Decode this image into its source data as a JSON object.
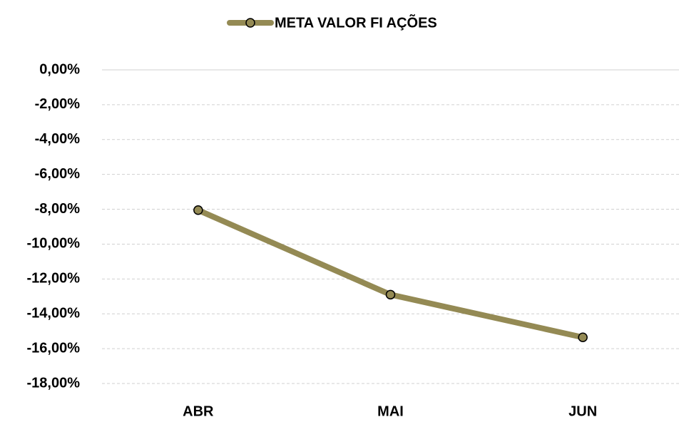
{
  "chart_data": {
    "type": "line",
    "categories": [
      "ABR",
      "MAI",
      "JUN"
    ],
    "series": [
      {
        "name": "META VALOR FI AÇÕES",
        "color": "#948a54",
        "values": [
          -8.05,
          -12.9,
          -15.35
        ]
      }
    ],
    "ylim": [
      -18,
      0
    ],
    "yticks": [
      {
        "value": 0,
        "label": "0,00%"
      },
      {
        "value": -2,
        "label": "-2,00%"
      },
      {
        "value": -4,
        "label": "-4,00%"
      },
      {
        "value": -6,
        "label": "-6,00%"
      },
      {
        "value": -8,
        "label": "-8,00%"
      },
      {
        "value": -10,
        "label": "-10,00%"
      },
      {
        "value": -12,
        "label": "-12,00%"
      },
      {
        "value": -14,
        "label": "-14,00%"
      },
      {
        "value": -16,
        "label": "-16,00%"
      },
      {
        "value": -18,
        "label": "-18,00%"
      }
    ],
    "grid": true
  }
}
